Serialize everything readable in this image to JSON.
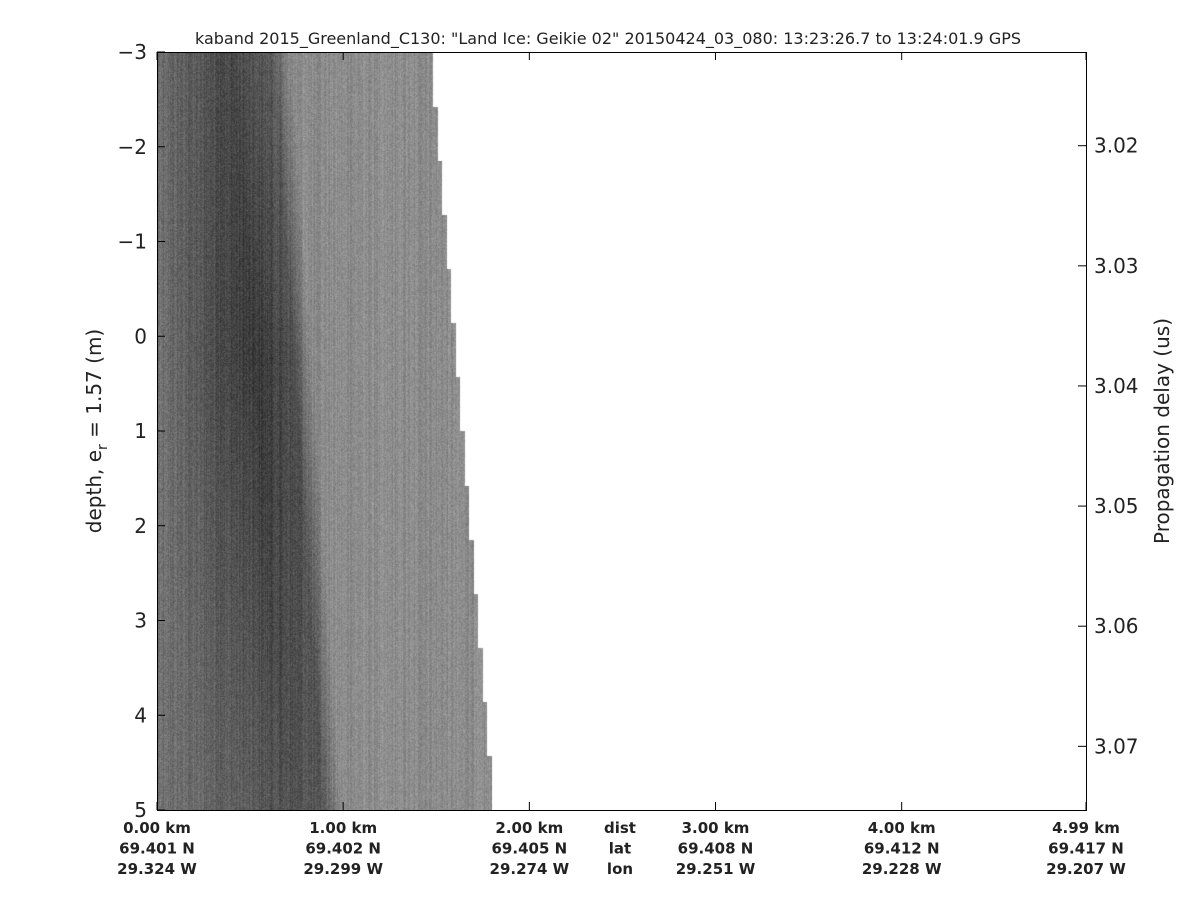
{
  "chart_data": {
    "type": "heatmap",
    "title": "kaband 2015_Greenland_C130: \"Land Ice: Geikie 02\"  20150424_03_080: 13:23:26.7 to 13:24:01.9 GPS",
    "ylabel_left": "depth, e",
    "ylabel_left_sub": "r",
    "ylabel_left_suffix": " = 1.57 (m)",
    "ylabel_right": "Propagation delay (us)",
    "colormap": "gray",
    "xlim_km": [
      0,
      4.99
    ],
    "ylim_depth": [
      -3,
      5
    ],
    "ylim_delay": [
      3.0122,
      3.0753
    ],
    "left_ticks": [
      -3,
      -2,
      -1,
      0,
      1,
      2,
      3,
      4,
      5
    ],
    "left_tick_labels": [
      "−3",
      "−2",
      "−1",
      "0",
      "1",
      "2",
      "3",
      "4",
      "5"
    ],
    "right_ticks": [
      3.02,
      3.03,
      3.04,
      3.05,
      3.06,
      3.07
    ],
    "right_tick_labels": [
      "3.02",
      "3.03",
      "3.04",
      "3.05",
      "3.06",
      "3.07"
    ],
    "x_ticks_km": [
      0,
      1,
      2,
      3,
      4,
      4.99
    ],
    "dist_labels": [
      "0.00 km",
      "1.00 km",
      "2.00 km",
      "3.00 km",
      "4.00 km",
      "4.99 km"
    ],
    "lat_labels": [
      "69.401 N",
      "69.402 N",
      "69.405 N",
      "69.408 N",
      "69.412 N",
      "69.417 N"
    ],
    "lon_labels": [
      "29.324 W",
      "29.299 W",
      "29.274 W",
      "29.251 W",
      "29.228 W",
      "29.207 W"
    ],
    "row_labels": [
      "dist",
      "lat",
      "lon"
    ],
    "data_extent_km": {
      "at_top_depth": 1.48,
      "at_bottom_depth": 1.82
    },
    "dark_band_edge_km": {
      "at_top_depth": 0.72,
      "at_bottom_depth": 0.99
    }
  }
}
